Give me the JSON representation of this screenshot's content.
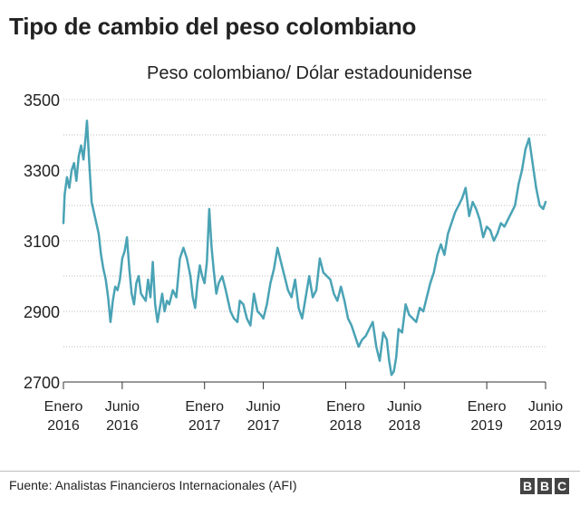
{
  "title": "Tipo de cambio del peso colombiano",
  "source": "Fuente: Analistas Financieros Internacionales (AFI)",
  "logo_letters": [
    "B",
    "B",
    "C"
  ],
  "chart_data": {
    "type": "line",
    "title": "Tipo de cambio del peso colombiano",
    "subtitle": "Peso colombiano/ Dólar estadounidense",
    "xlabel": "",
    "ylabel": "",
    "xlim": [
      0,
      41
    ],
    "ylim": [
      2700,
      3500
    ],
    "yticks": [
      2700,
      2900,
      3100,
      3300,
      3500
    ],
    "xticks": [
      {
        "x": 0,
        "line1": "Enero",
        "line2": "2016"
      },
      {
        "x": 5,
        "line1": "Junio",
        "line2": "2016"
      },
      {
        "x": 12,
        "line1": "Enero",
        "line2": "2017"
      },
      {
        "x": 17,
        "line1": "Junio",
        "line2": "2017"
      },
      {
        "x": 24,
        "line1": "Enero",
        "line2": "2018"
      },
      {
        "x": 29,
        "line1": "Junio",
        "line2": "2018"
      },
      {
        "x": 36,
        "line1": "Enero",
        "line2": "2019"
      },
      {
        "x": 41,
        "line1": "Junio",
        "line2": "2019"
      }
    ],
    "grid": true,
    "line_color": "#4aa3b5",
    "series": [
      {
        "name": "",
        "x": [
          0,
          0.1,
          0.3,
          0.5,
          0.7,
          0.9,
          1.1,
          1.3,
          1.5,
          1.7,
          1.9,
          2.0,
          2.2,
          2.4,
          2.6,
          2.8,
          3.0,
          3.2,
          3.4,
          3.6,
          3.8,
          4.0,
          4.2,
          4.4,
          4.6,
          4.8,
          5.0,
          5.2,
          5.4,
          5.6,
          5.8,
          6.0,
          6.2,
          6.4,
          6.6,
          6.8,
          7.0,
          7.2,
          7.4,
          7.6,
          7.8,
          8.0,
          8.2,
          8.4,
          8.6,
          8.8,
          9.0,
          9.3,
          9.6,
          9.9,
          10.2,
          10.5,
          10.8,
          11.0,
          11.2,
          11.4,
          11.6,
          11.8,
          12.0,
          12.2,
          12.4,
          12.6,
          12.8,
          13.0,
          13.2,
          13.5,
          13.8,
          14.0,
          14.2,
          14.5,
          14.8,
          15.0,
          15.3,
          15.6,
          15.9,
          16.2,
          16.5,
          16.8,
          17.0,
          17.3,
          17.6,
          17.9,
          18.2,
          18.5,
          18.8,
          19.1,
          19.4,
          19.7,
          20.0,
          20.3,
          20.6,
          20.9,
          21.2,
          21.5,
          21.8,
          22.1,
          22.4,
          22.7,
          23.0,
          23.3,
          23.6,
          23.9,
          24.2,
          24.5,
          24.8,
          25.1,
          25.4,
          25.7,
          26.0,
          26.3,
          26.6,
          26.9,
          27.2,
          27.5,
          27.7,
          27.9,
          28.1,
          28.3,
          28.5,
          28.8,
          29.1,
          29.4,
          29.7,
          30.0,
          30.3,
          30.6,
          30.9,
          31.2,
          31.5,
          31.8,
          32.1,
          32.4,
          32.7,
          33.0,
          33.3,
          33.6,
          33.9,
          34.2,
          34.5,
          34.8,
          35.1,
          35.4,
          35.7,
          36.0,
          36.3,
          36.6,
          36.9,
          37.2,
          37.5,
          37.8,
          38.1,
          38.4,
          38.7,
          39.0,
          39.3,
          39.6,
          39.9,
          40.2,
          40.5,
          40.8,
          41.0
        ],
        "y": [
          3150,
          3230,
          3280,
          3250,
          3300,
          3320,
          3270,
          3340,
          3370,
          3330,
          3400,
          3440,
          3320,
          3210,
          3180,
          3150,
          3120,
          3060,
          3020,
          2990,
          2940,
          2870,
          2930,
          2970,
          2960,
          2990,
          3050,
          3070,
          3110,
          3020,
          2950,
          2920,
          2980,
          3000,
          2950,
          2940,
          2930,
          2990,
          2940,
          3040,
          2920,
          2870,
          2910,
          2950,
          2900,
          2930,
          2920,
          2960,
          2940,
          3050,
          3080,
          3050,
          3000,
          2940,
          2910,
          2980,
          3030,
          3000,
          2980,
          3040,
          3190,
          3080,
          3010,
          2950,
          2980,
          3000,
          2960,
          2930,
          2900,
          2880,
          2870,
          2930,
          2920,
          2880,
          2860,
          2950,
          2900,
          2890,
          2880,
          2920,
          2980,
          3020,
          3080,
          3040,
          3000,
          2960,
          2940,
          2990,
          2910,
          2880,
          2940,
          3000,
          2940,
          2960,
          3050,
          3010,
          3000,
          2990,
          2950,
          2930,
          2970,
          2930,
          2880,
          2860,
          2830,
          2800,
          2820,
          2830,
          2850,
          2870,
          2800,
          2760,
          2840,
          2820,
          2760,
          2720,
          2730,
          2770,
          2850,
          2840,
          2920,
          2890,
          2880,
          2870,
          2910,
          2900,
          2940,
          2980,
          3010,
          3060,
          3090,
          3060,
          3120,
          3150,
          3180,
          3200,
          3220,
          3250,
          3170,
          3210,
          3190,
          3160,
          3110,
          3140,
          3130,
          3100,
          3120,
          3150,
          3140,
          3160,
          3180,
          3200,
          3260,
          3300,
          3360,
          3390,
          3320,
          3250,
          3200,
          3190,
          3210
        ]
      }
    ]
  }
}
